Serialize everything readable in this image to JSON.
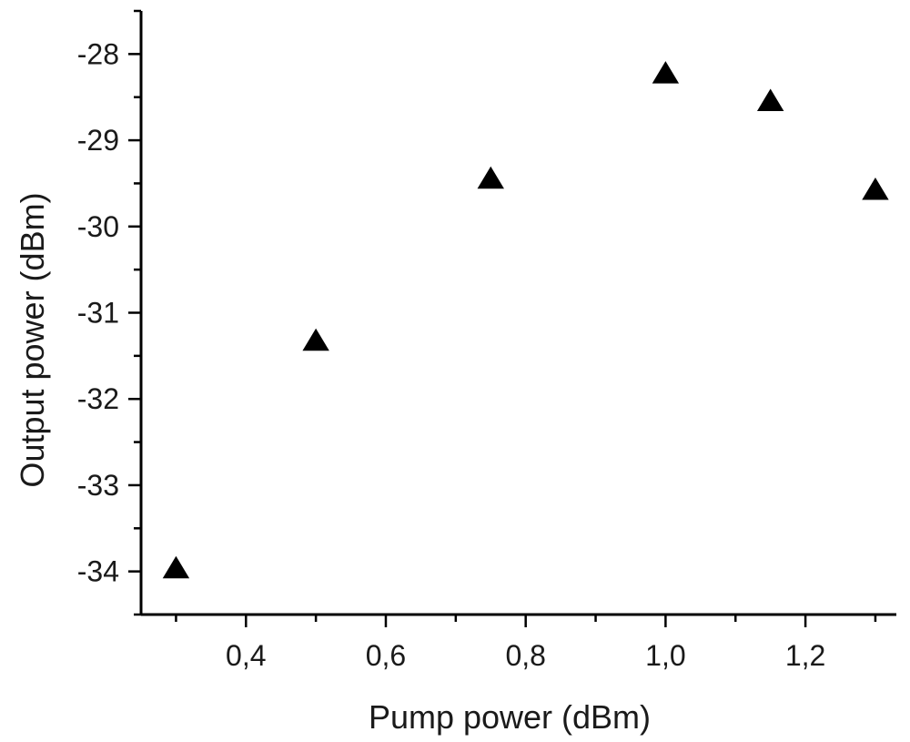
{
  "chart_data": {
    "type": "scatter",
    "xlabel": "Pump power (dBm)",
    "ylabel": "Output power (dBm)",
    "xlim": [
      0.25,
      1.33
    ],
    "ylim": [
      -34.5,
      -27.5
    ],
    "x_ticks": [
      0.4,
      0.6,
      0.8,
      1.0,
      1.2
    ],
    "x_tick_labels": [
      "0,4",
      "0,6",
      "0,8",
      "1,0",
      "1,2"
    ],
    "x_minor_ticks": [
      0.3,
      0.5,
      0.7,
      0.9,
      1.1,
      1.3
    ],
    "y_ticks": [
      -34,
      -33,
      -32,
      -31,
      -30,
      -29,
      -28
    ],
    "y_tick_labels": [
      "-34",
      "-33",
      "-32",
      "-31",
      "-30",
      "-29",
      "-28"
    ],
    "y_minor_ticks": [
      -34.5,
      -33.5,
      -32.5,
      -31.5,
      -30.5,
      -29.5,
      -28.5,
      -27.5
    ],
    "grid": false,
    "marker": "triangle-up",
    "marker_color": "#000000",
    "series": [
      {
        "x": [
          0.3,
          0.5,
          0.75,
          1.0,
          1.15,
          1.3
        ],
        "y": [
          -33.97,
          -31.33,
          -29.45,
          -28.23,
          -28.55,
          -29.58
        ]
      }
    ]
  }
}
